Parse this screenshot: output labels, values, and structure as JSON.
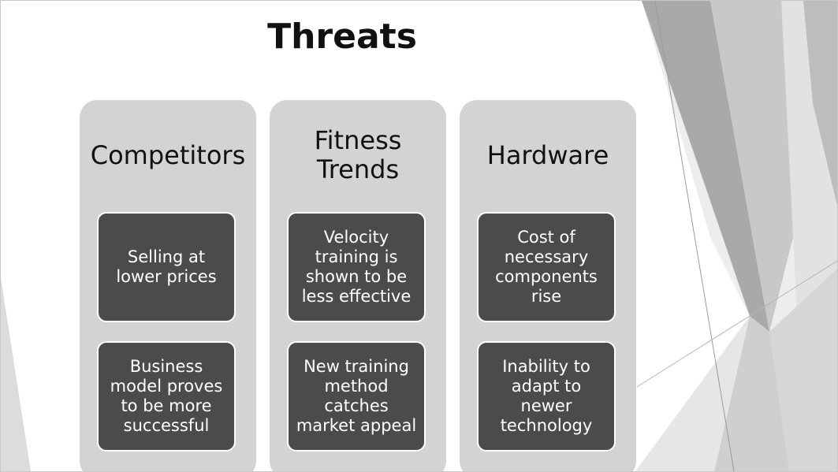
{
  "slide": {
    "title": "Threats",
    "columns": [
      {
        "header": "Competitors",
        "cards": [
          "Selling at lower prices",
          "Business model proves to be more successful"
        ]
      },
      {
        "header": "Fitness Trends",
        "cards": [
          "Velocity training is shown to be less effective",
          "New training method catches market appeal"
        ]
      },
      {
        "header": "Hardware",
        "cards": [
          "Cost of necessary components rise",
          "Inability to adapt to newer technology"
        ]
      }
    ]
  },
  "colors": {
    "column_background": "#d3d3d3",
    "card_background": "#4b4b4b",
    "card_border": "#ffffff",
    "title_text": "#111111"
  }
}
